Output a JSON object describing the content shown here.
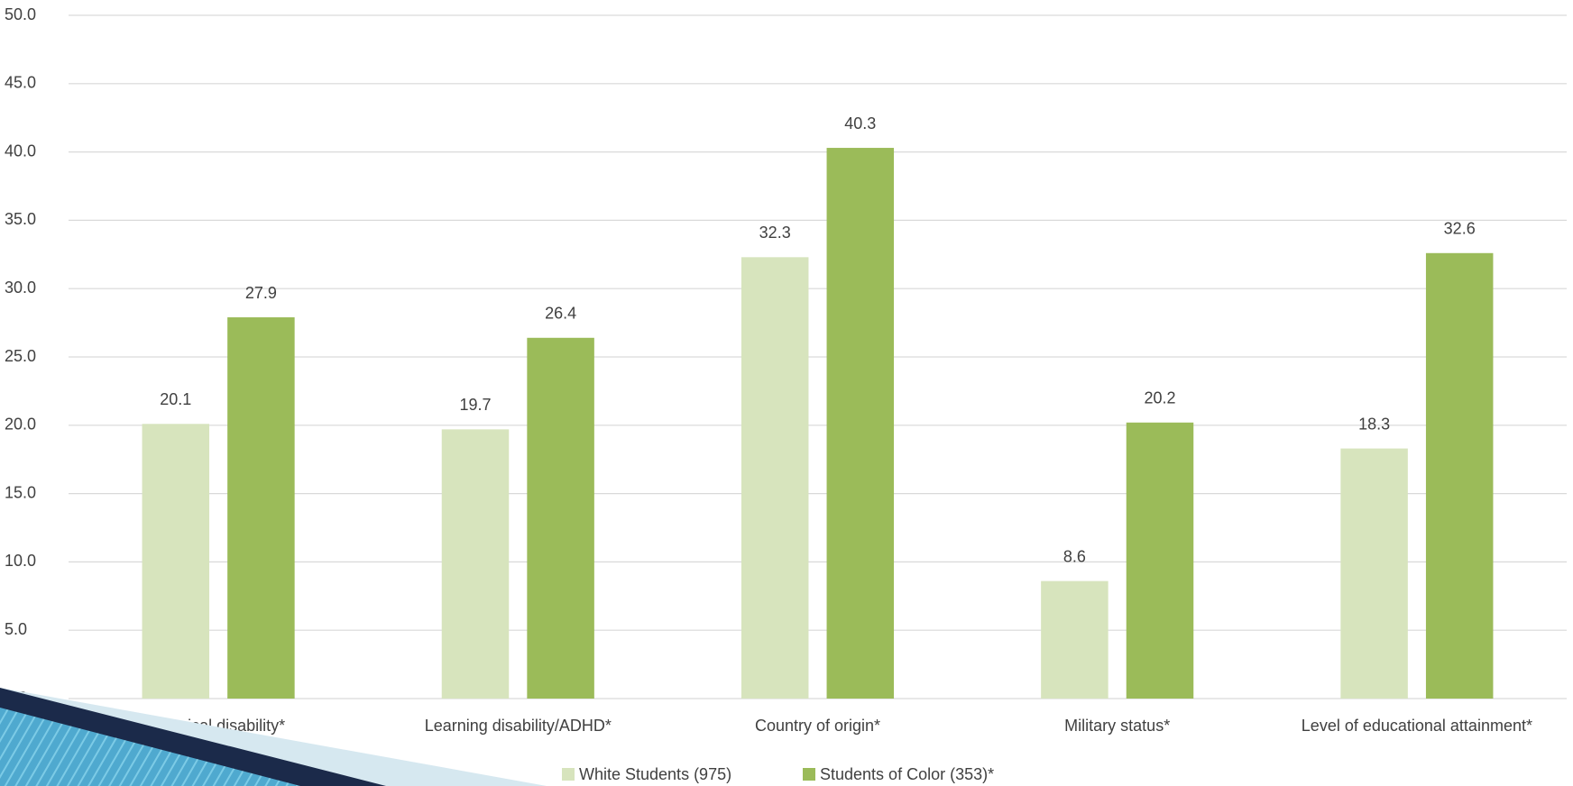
{
  "chart_data": {
    "type": "bar",
    "categories": [
      "Physical disability*",
      "Learning disability/ADHD*",
      "Country of origin*",
      "Military status*",
      "Level of educational attainment*"
    ],
    "series": [
      {
        "name": "White Students (975)",
        "color": "#d7e4bd",
        "values": [
          20.1,
          19.7,
          32.3,
          8.6,
          18.3
        ]
      },
      {
        "name": "Students of Color (353)*",
        "color": "#9bbb59",
        "values": [
          27.9,
          26.4,
          40.3,
          20.2,
          32.6
        ]
      }
    ],
    "ylim": [
      0,
      50
    ],
    "yticks": [
      {
        "value": 0,
        "label": "0.0"
      },
      {
        "value": 5,
        "label": "5.0"
      },
      {
        "value": 10,
        "label": "10.0"
      },
      {
        "value": 15,
        "label": "15.0"
      },
      {
        "value": 20,
        "label": "20.0"
      },
      {
        "value": 25,
        "label": "25.0"
      },
      {
        "value": 30,
        "label": "30.0"
      },
      {
        "value": 35,
        "label": "35.0"
      },
      {
        "value": 40,
        "label": "40.0"
      },
      {
        "value": 45,
        "label": "45.0"
      },
      {
        "value": 50,
        "label": "50.0"
      }
    ],
    "grid": true,
    "legend": "bottom"
  }
}
